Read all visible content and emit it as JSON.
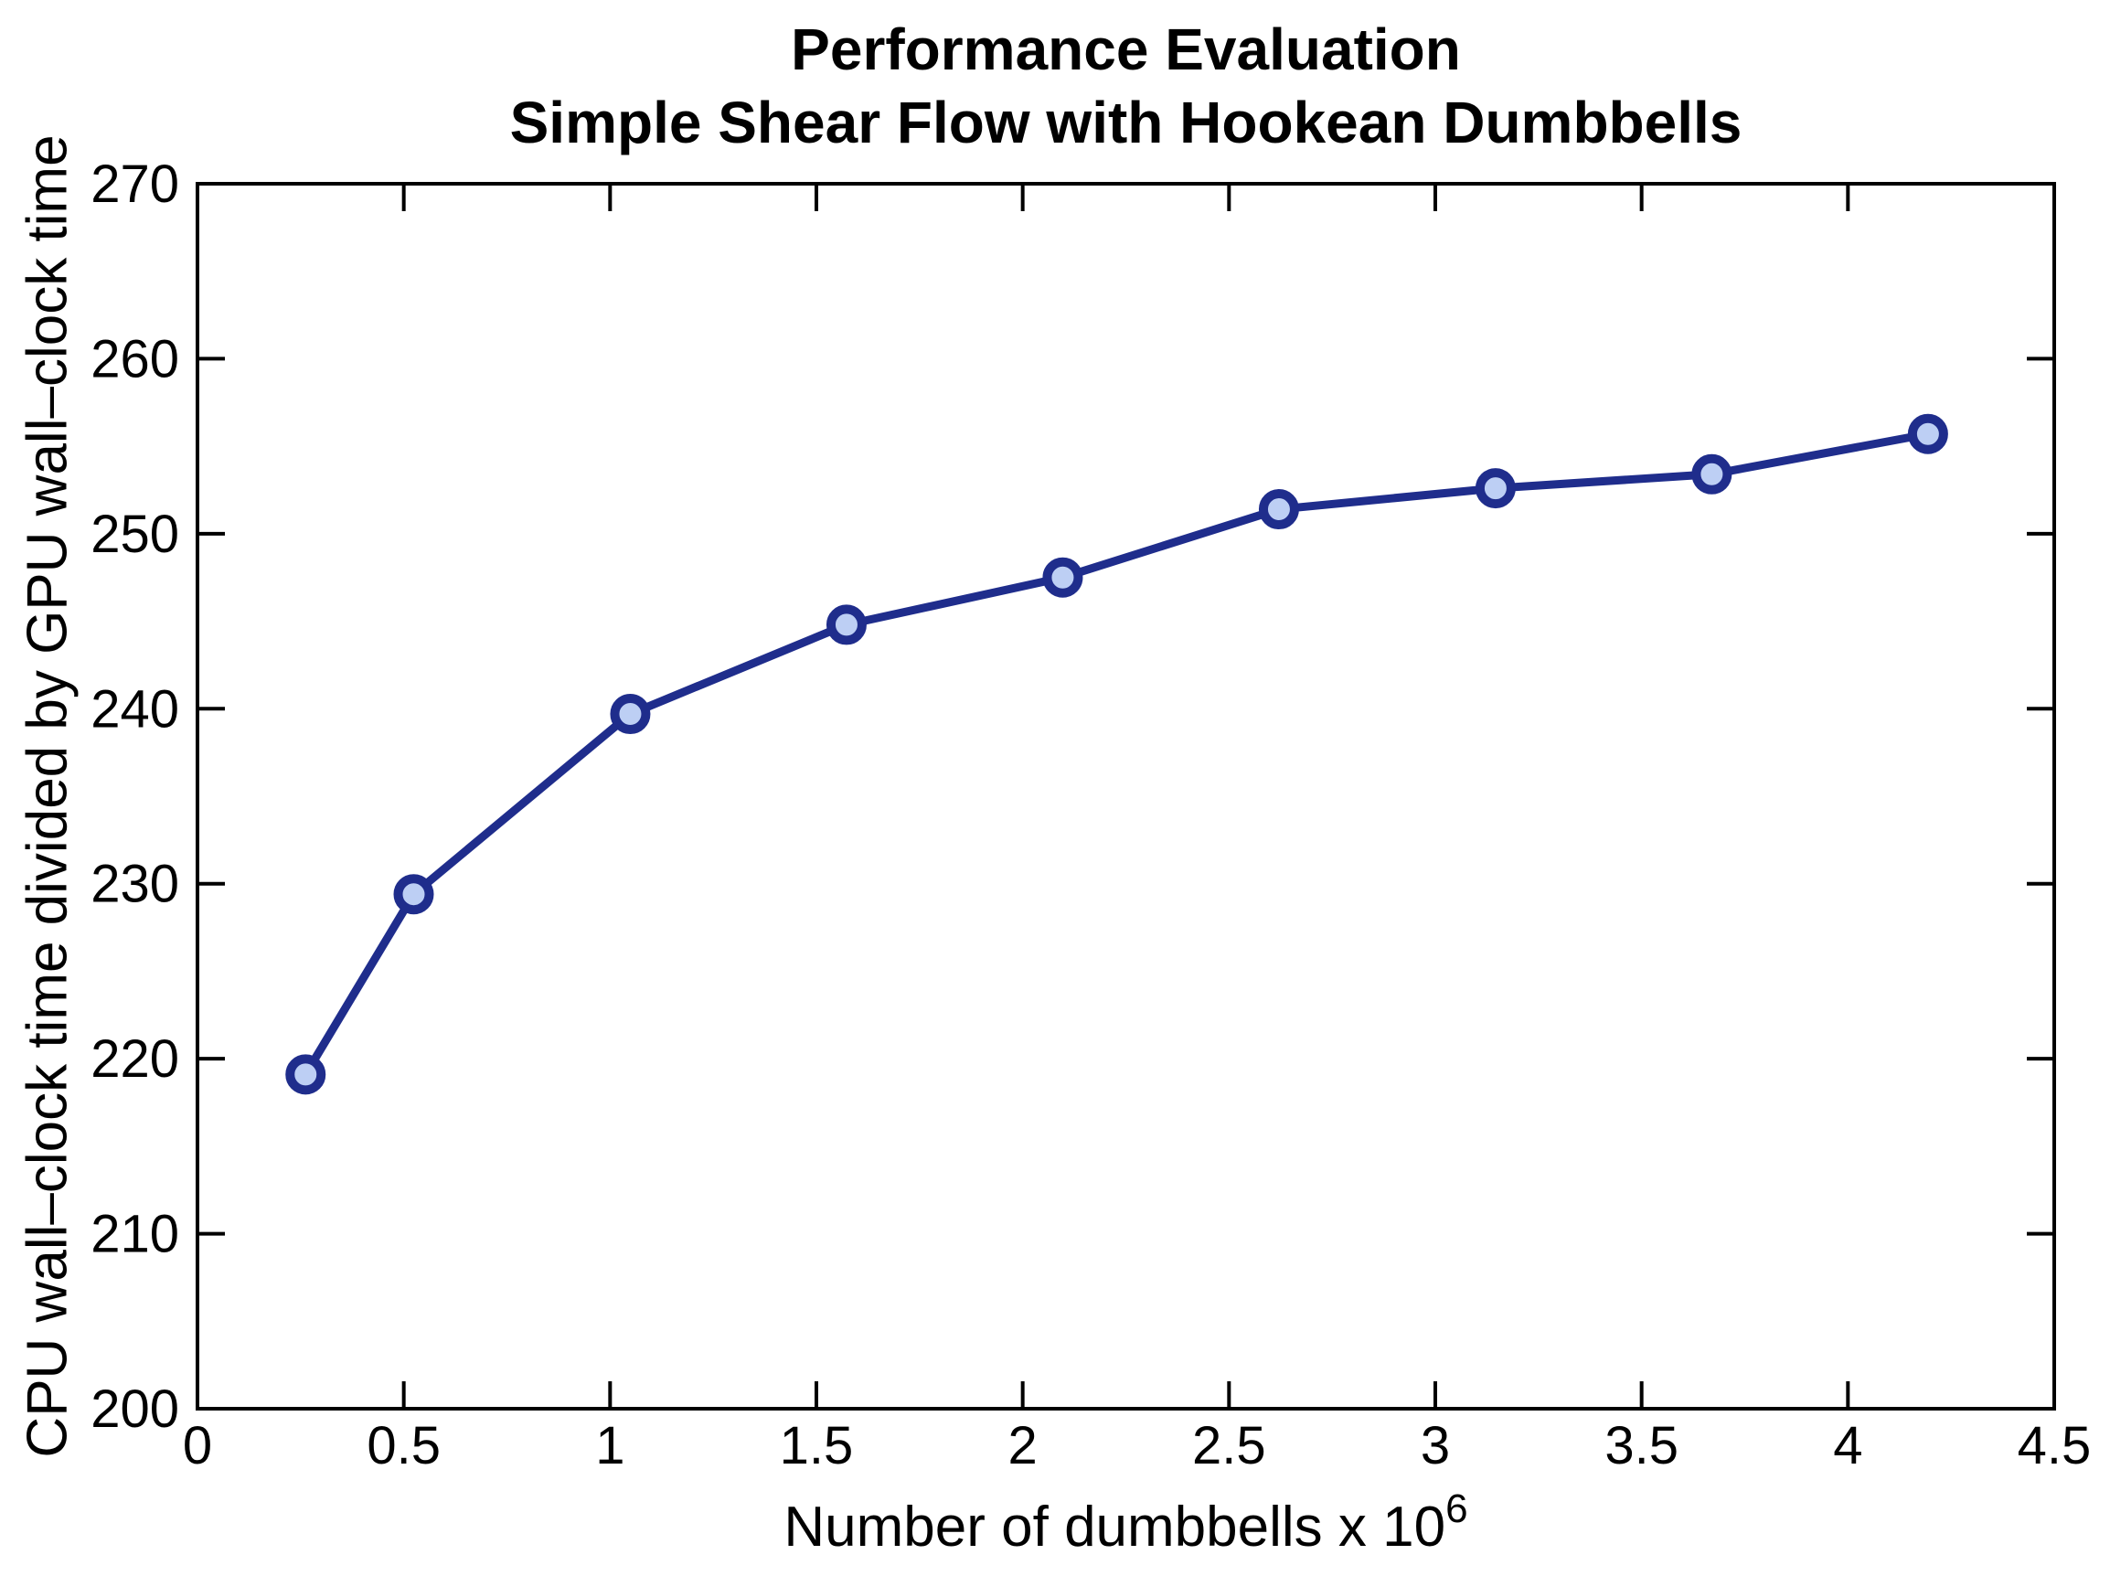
{
  "chart_data": {
    "type": "line",
    "title_line1": "Performance Evaluation",
    "title_line2": "Simple Shear Flow with Hookean Dumbbells",
    "xlabel_base": "Number of dumbbells x 10",
    "xlabel_exponent": "6",
    "ylabel": "CPU wall–clock time divided by GPU wall–clock time",
    "xlim": [
      0,
      4.5
    ],
    "ylim": [
      200,
      270
    ],
    "xticks": [
      0,
      0.5,
      1,
      1.5,
      2,
      2.5,
      3,
      3.5,
      4,
      4.5
    ],
    "xtick_labels": [
      "0",
      "0.5",
      "1",
      "1.5",
      "2",
      "2.5",
      "3",
      "3.5",
      "4",
      "4.5"
    ],
    "yticks": [
      200,
      210,
      220,
      230,
      240,
      250,
      260,
      270
    ],
    "ytick_labels": [
      "200",
      "210",
      "220",
      "230",
      "240",
      "250",
      "260",
      "270"
    ],
    "grid": false,
    "legend": "none",
    "series": [
      {
        "name": "CPU wall-clock time divided by GPU wall-clock time",
        "x": [
          0.262,
          0.524,
          1.049,
          1.573,
          2.097,
          2.621,
          3.146,
          3.67,
          4.194
        ],
        "y": [
          219.1,
          229.4,
          239.7,
          244.8,
          247.5,
          251.4,
          252.6,
          253.4,
          255.7
        ]
      }
    ],
    "colors": {
      "line": "#1F2D8C",
      "marker_fill": "#BDCFF4",
      "marker_edge": "#1F2D8C",
      "axis": "#000000",
      "background": "#FFFFFF"
    }
  }
}
